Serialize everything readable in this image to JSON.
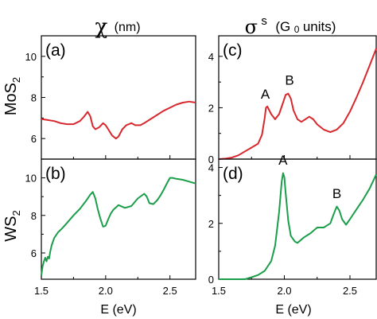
{
  "col_titles": {
    "left_symbol": "χ",
    "left_unit": "(nm)",
    "right_symbol": "σ",
    "right_sup": "s",
    "right_unit_pre": "(G",
    "right_unit_sub": "0",
    "right_unit_post": " units)"
  },
  "row_labels": {
    "top_main": "MoS",
    "top_sub": "2",
    "bottom_main": "WS",
    "bottom_sub": "2"
  },
  "x_axis_label": "E (eV)",
  "colors": {
    "mos2": "#d8272d",
    "ws2": "#1b9e4a"
  },
  "chart_data": [
    {
      "type": "line",
      "panel_label": "(a)",
      "xlim": [
        1.5,
        2.7
      ],
      "ylim": [
        5,
        11
      ],
      "y_ticks": [
        "6",
        "8",
        "10"
      ],
      "y_tick_values": [
        6,
        8,
        10
      ],
      "x_ticks": [],
      "color": "mos2",
      "series": [
        {
          "x": [
            1.5,
            1.55,
            1.6,
            1.65,
            1.7,
            1.75,
            1.8,
            1.83,
            1.86,
            1.88,
            1.9,
            1.92,
            1.95,
            1.98,
            2.0,
            2.02,
            2.05,
            2.08,
            2.1,
            2.13,
            2.16,
            2.2,
            2.23,
            2.27,
            2.3,
            2.35,
            2.4,
            2.45,
            2.5,
            2.55,
            2.6,
            2.65,
            2.7
          ],
          "y": [
            6.95,
            6.9,
            6.85,
            6.75,
            6.7,
            6.7,
            6.85,
            7.05,
            7.3,
            7.1,
            6.6,
            6.45,
            6.55,
            6.75,
            6.65,
            6.45,
            6.15,
            6.0,
            6.1,
            6.45,
            6.65,
            6.75,
            6.65,
            6.65,
            6.75,
            6.95,
            7.15,
            7.35,
            7.5,
            7.65,
            7.75,
            7.8,
            7.75
          ]
        }
      ],
      "annotations": []
    },
    {
      "type": "line",
      "panel_label": "(b)",
      "xlim": [
        1.5,
        2.7
      ],
      "ylim": [
        4.6,
        11
      ],
      "y_ticks": [
        "6",
        "8",
        "10"
      ],
      "y_tick_values": [
        6,
        8,
        10
      ],
      "x_ticks": [
        "1.5",
        "2.0",
        "2.5"
      ],
      "x_tick_values": [
        1.5,
        2.0,
        2.5
      ],
      "color": "ws2",
      "series": [
        {
          "x": [
            1.5,
            1.51,
            1.52,
            1.53,
            1.54,
            1.55,
            1.56,
            1.57,
            1.58,
            1.6,
            1.63,
            1.66,
            1.7,
            1.75,
            1.8,
            1.85,
            1.88,
            1.9,
            1.92,
            1.94,
            1.96,
            1.98,
            2.0,
            2.02,
            2.04,
            2.06,
            2.1,
            2.15,
            2.2,
            2.25,
            2.3,
            2.32,
            2.34,
            2.37,
            2.4,
            2.43,
            2.45,
            2.48,
            2.5,
            2.52,
            2.55,
            2.6,
            2.65,
            2.7
          ],
          "y": [
            4.8,
            5.3,
            5.55,
            5.75,
            5.55,
            5.8,
            5.7,
            6.1,
            6.4,
            6.8,
            7.1,
            7.3,
            7.6,
            8.0,
            8.35,
            8.8,
            9.1,
            9.25,
            8.9,
            8.3,
            7.8,
            7.4,
            7.45,
            7.8,
            8.1,
            8.3,
            8.55,
            8.4,
            8.5,
            8.9,
            9.15,
            9.0,
            8.65,
            8.6,
            8.8,
            9.1,
            9.35,
            9.75,
            10.0,
            10.0,
            9.95,
            9.9,
            9.8,
            9.7
          ]
        }
      ],
      "annotations": []
    },
    {
      "type": "line",
      "panel_label": "(c)",
      "xlim": [
        1.5,
        2.7
      ],
      "ylim": [
        0,
        4.8
      ],
      "y_ticks": [
        "0",
        "2",
        "4"
      ],
      "y_tick_values": [
        0,
        2,
        4
      ],
      "x_ticks": [],
      "color": "mos2",
      "series": [
        {
          "x": [
            1.5,
            1.55,
            1.6,
            1.65,
            1.7,
            1.75,
            1.8,
            1.83,
            1.85,
            1.86,
            1.87,
            1.88,
            1.9,
            1.93,
            1.96,
            1.99,
            2.01,
            2.03,
            2.05,
            2.07,
            2.1,
            2.13,
            2.16,
            2.19,
            2.22,
            2.25,
            2.3,
            2.35,
            2.4,
            2.45,
            2.5,
            2.55,
            2.6,
            2.65,
            2.7
          ],
          "y": [
            0,
            0.02,
            0.06,
            0.15,
            0.3,
            0.45,
            0.6,
            0.95,
            1.6,
            2.0,
            2.05,
            1.95,
            1.75,
            1.55,
            1.75,
            2.2,
            2.5,
            2.55,
            2.35,
            1.9,
            1.55,
            1.45,
            1.55,
            1.65,
            1.55,
            1.35,
            1.15,
            1.05,
            1.15,
            1.4,
            1.85,
            2.4,
            3.0,
            3.65,
            4.3
          ]
        }
      ],
      "annotations": [
        {
          "text": "A",
          "x": 1.855,
          "y": 2.35
        },
        {
          "text": "B",
          "x": 2.04,
          "y": 2.9
        }
      ]
    },
    {
      "type": "line",
      "panel_label": "(d)",
      "xlim": [
        1.5,
        2.7
      ],
      "ylim": [
        0,
        4.3
      ],
      "y_ticks": [
        "0",
        "2",
        "4"
      ],
      "y_tick_values": [
        0,
        2,
        4
      ],
      "x_ticks": [
        "1.5",
        "2.0",
        "2.5"
      ],
      "x_tick_values": [
        1.5,
        2.0,
        2.5
      ],
      "color": "ws2",
      "series": [
        {
          "x": [
            1.5,
            1.6,
            1.7,
            1.75,
            1.8,
            1.85,
            1.9,
            1.93,
            1.96,
            1.98,
            1.99,
            2.0,
            2.01,
            2.03,
            2.05,
            2.08,
            2.1,
            2.15,
            2.2,
            2.25,
            2.3,
            2.35,
            2.37,
            2.39,
            2.4,
            2.42,
            2.44,
            2.47,
            2.5,
            2.55,
            2.6,
            2.65,
            2.7
          ],
          "y": [
            0,
            0,
            0,
            0.07,
            0.15,
            0.3,
            0.65,
            1.2,
            2.4,
            3.5,
            3.8,
            3.65,
            3.1,
            2.1,
            1.55,
            1.35,
            1.3,
            1.5,
            1.65,
            1.85,
            1.85,
            2.0,
            2.25,
            2.5,
            2.6,
            2.45,
            2.15,
            1.95,
            2.15,
            2.5,
            2.85,
            3.25,
            3.75
          ]
        }
      ],
      "annotations": [
        {
          "text": "A",
          "x": 1.99,
          "y": 4.1
        },
        {
          "text": "B",
          "x": 2.4,
          "y": 2.9
        }
      ]
    }
  ]
}
